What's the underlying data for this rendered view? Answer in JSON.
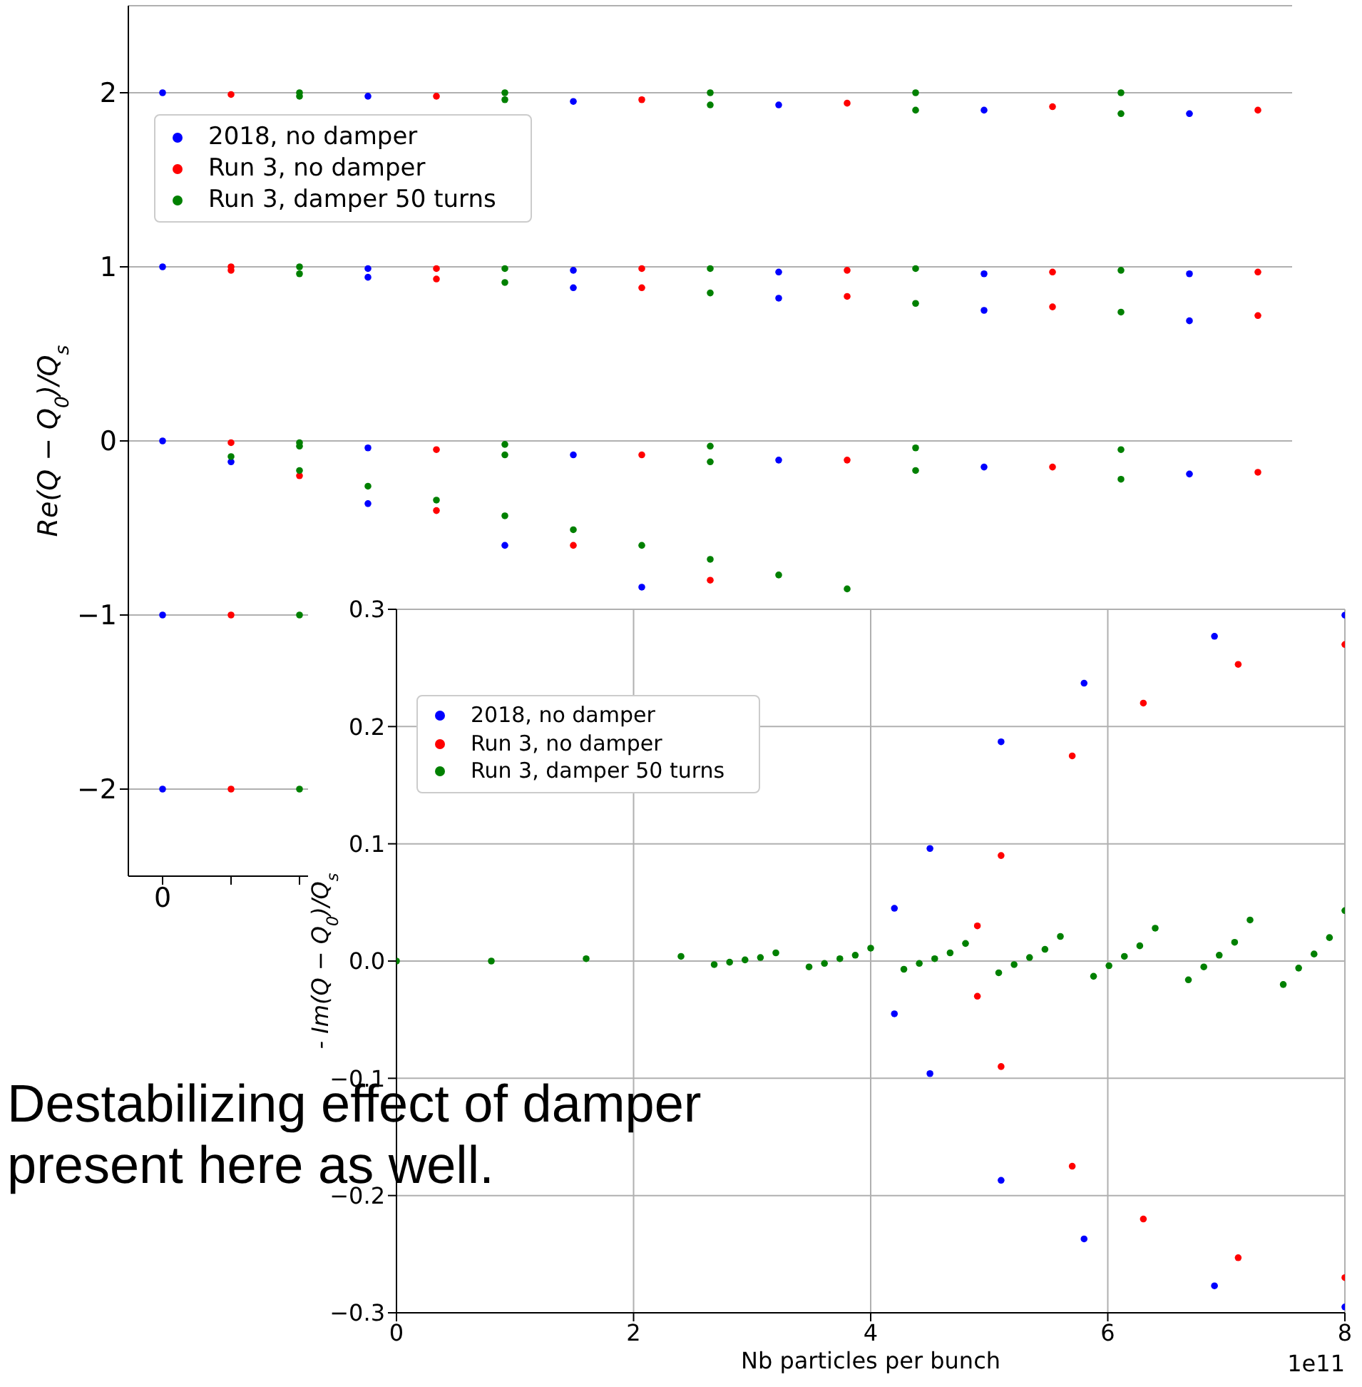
{
  "chart_data": [
    {
      "type": "scatter",
      "ylabel": "Re(Q − Q$_{0}$)/Q$_{s}$",
      "categories": [
        "0",
        null,
        null,
        null,
        null,
        null,
        null,
        null,
        null,
        null,
        null,
        null,
        null,
        null,
        null,
        null,
        null
      ],
      "ylim": [
        -2.5,
        2.5
      ],
      "yticks": [
        {
          "value": -2,
          "label": "−2"
        },
        {
          "value": -1,
          "label": "−1"
        },
        0,
        1,
        2
      ],
      "grid": "y",
      "legend": "top left",
      "marker": "circle",
      "series": [
        {
          "name": "2018, no damper",
          "color": "#0000ff",
          "values": [
            2,
            null,
            null,
            1.98,
            null,
            null,
            1.95,
            null,
            null,
            1.93,
            null,
            null,
            1.9,
            null,
            null,
            1.88,
            null
          ]
        },
        {
          "name": "Run 3, no damper",
          "color": "#ff0000",
          "values": [
            null,
            1.99,
            null,
            null,
            1.98,
            null,
            null,
            1.96,
            null,
            null,
            1.94,
            null,
            null,
            1.92,
            null,
            null,
            1.9
          ]
        },
        {
          "name": "Run 3, damper 50 turns",
          "color": "#008000",
          "values": [
            null,
            null,
            2,
            null,
            null,
            2,
            null,
            null,
            2,
            null,
            null,
            2,
            null,
            null,
            2,
            null,
            null
          ]
        },
        {
          "color": "#0000ff",
          "values": [
            1,
            null,
            null,
            0.94,
            null,
            null,
            0.88,
            null,
            null,
            0.82,
            null,
            null,
            0.75,
            null,
            null,
            0.69,
            null
          ]
        },
        {
          "color": "#0000ff",
          "values": [
            null,
            null,
            null,
            0.99,
            null,
            null,
            0.98,
            null,
            null,
            0.97,
            null,
            null,
            0.96,
            null,
            null,
            0.96,
            null
          ]
        },
        {
          "color": "#0000ff",
          "values": [
            0,
            null,
            null,
            -0.04,
            null,
            null,
            -0.08,
            null,
            null,
            -0.11,
            null,
            null,
            -0.15,
            null,
            null,
            -0.19,
            null
          ]
        },
        {
          "color": "#0000ff",
          "values": [
            null,
            -0.12,
            null,
            -0.36,
            null,
            -0.6,
            null,
            -0.84,
            null,
            null,
            null,
            null,
            null,
            null,
            null,
            null,
            null
          ]
        },
        {
          "color": "#0000ff",
          "values": [
            -1,
            null,
            null,
            null,
            null,
            null,
            null,
            null,
            null,
            null,
            null,
            null,
            null,
            null,
            null,
            null,
            null
          ]
        },
        {
          "color": "#0000ff",
          "values": [
            -2,
            null,
            null,
            null,
            null,
            null,
            null,
            null,
            null,
            null,
            null,
            null,
            null,
            null,
            null,
            null,
            null
          ]
        },
        {
          "color": "#ff0000",
          "values": [
            null,
            0.98,
            null,
            null,
            0.93,
            null,
            null,
            0.88,
            null,
            null,
            0.83,
            null,
            null,
            0.77,
            null,
            null,
            0.72
          ]
        },
        {
          "color": "#ff0000",
          "values": [
            null,
            1,
            null,
            null,
            0.99,
            null,
            null,
            0.99,
            null,
            null,
            0.98,
            null,
            null,
            0.97,
            null,
            null,
            0.97
          ]
        },
        {
          "color": "#ff0000",
          "values": [
            null,
            -0.01,
            null,
            null,
            -0.05,
            null,
            null,
            -0.08,
            null,
            null,
            -0.11,
            null,
            null,
            -0.15,
            null,
            null,
            -0.18
          ]
        },
        {
          "color": "#ff0000",
          "values": [
            null,
            null,
            -0.2,
            null,
            -0.4,
            null,
            -0.6,
            null,
            -0.8,
            null,
            null,
            null,
            null,
            null,
            null,
            null,
            null
          ]
        },
        {
          "color": "#ff0000",
          "values": [
            null,
            -1,
            null,
            null,
            null,
            null,
            null,
            null,
            null,
            null,
            null,
            null,
            null,
            null,
            null,
            null,
            null
          ]
        },
        {
          "color": "#ff0000",
          "values": [
            null,
            -2,
            null,
            null,
            null,
            null,
            null,
            null,
            null,
            null,
            null,
            null,
            null,
            null,
            null,
            null,
            null
          ]
        },
        {
          "color": "#008000",
          "values": [
            null,
            null,
            1.98,
            null,
            null,
            1.96,
            null,
            null,
            1.93,
            null,
            null,
            1.9,
            null,
            null,
            1.88,
            null,
            null
          ]
        },
        {
          "color": "#008000",
          "values": [
            null,
            null,
            1,
            null,
            null,
            0.99,
            null,
            null,
            0.99,
            null,
            null,
            0.99,
            null,
            null,
            0.98,
            null,
            null
          ]
        },
        {
          "color": "#008000",
          "values": [
            null,
            null,
            0.96,
            null,
            null,
            0.91,
            null,
            null,
            0.85,
            null,
            null,
            0.79,
            null,
            null,
            0.74,
            null,
            null
          ]
        },
        {
          "color": "#008000",
          "values": [
            null,
            null,
            -0.03,
            null,
            null,
            -0.08,
            null,
            null,
            -0.12,
            null,
            null,
            -0.17,
            null,
            null,
            -0.22,
            null,
            null
          ]
        },
        {
          "color": "#008000",
          "values": [
            null,
            null,
            -0.01,
            null,
            null,
            -0.02,
            null,
            null,
            -0.03,
            null,
            null,
            -0.04,
            null,
            null,
            -0.05,
            null,
            null
          ]
        },
        {
          "color": "#008000",
          "values": [
            null,
            -0.09,
            -0.17,
            -0.26,
            -0.34,
            -0.43,
            -0.51,
            -0.6,
            -0.68,
            -0.77,
            -0.85,
            null,
            null,
            null,
            null,
            null,
            null
          ]
        },
        {
          "color": "#008000",
          "values": [
            null,
            null,
            -1,
            null,
            null,
            null,
            null,
            null,
            null,
            null,
            null,
            null,
            null,
            null,
            null,
            null,
            null
          ]
        },
        {
          "color": "#008000",
          "values": [
            null,
            null,
            -2,
            null,
            null,
            null,
            null,
            null,
            null,
            null,
            null,
            null,
            null,
            null,
            null,
            null,
            null
          ]
        }
      ]
    },
    {
      "type": "scatter",
      "xlabel": "Nb particles per bunch",
      "ylabel": "- Im(Q − Q$_{0}$)/Q$_{s}$",
      "xlim": [
        0,
        8
      ],
      "xticks": [
        0,
        2,
        4,
        6,
        8
      ],
      "ylim": [
        -0.3,
        0.3
      ],
      "yticks": [
        {
          "value": -0.3,
          "label": "−0.3"
        },
        {
          "value": -0.2,
          "label": "−0.2"
        },
        {
          "value": -0.1,
          "label": "−0.1"
        },
        {
          "value": 0,
          "label": "0.0"
        },
        0.1,
        0.2,
        0.3
      ],
      "grid": true,
      "legend": "top left",
      "marker": "circle",
      "annotations": [
        "1e11",
        "Destabilizing effect of damper present here as well."
      ],
      "series": [
        {
          "name": "2018, no damper",
          "color": "#0000ff",
          "x": [
            4.2,
            4.5,
            5.1,
            5.8,
            6.9,
            8,
            4.2,
            4.5,
            5.1,
            5.8,
            6.9,
            8
          ],
          "values": [
            0.045,
            0.096,
            0.187,
            0.237,
            0.277,
            0.295,
            -0.045,
            -0.096,
            -0.187,
            -0.237,
            -0.277,
            -0.295
          ]
        },
        {
          "name": "Run 3, no damper",
          "color": "#ff0000",
          "x": [
            4.9,
            5.1,
            5.7,
            6.3,
            7.1,
            8,
            4.9,
            5.1,
            5.7,
            6.3,
            7.1,
            8
          ],
          "values": [
            0.03,
            0.09,
            0.175,
            0.22,
            0.253,
            0.27,
            -0.03,
            -0.09,
            -0.175,
            -0.22,
            -0.253,
            -0.27
          ]
        },
        {
          "name": "Run 3, damper 50 turns",
          "color": "#008000",
          "x": [
            0,
            0.8,
            1.6,
            2.4,
            3.2,
            4,
            4.8,
            5.6,
            6.4,
            7.2,
            8,
            7.87,
            7.07,
            6.27,
            5.47,
            4.67,
            3.87,
            3.07,
            7.74,
            6.94,
            6.14,
            5.34,
            4.54,
            3.74,
            2.94,
            7.61,
            6.81,
            6.01,
            5.21,
            4.41,
            3.61,
            2.81,
            7.48,
            6.68,
            5.88,
            5.08,
            4.28,
            3.48,
            2.68
          ],
          "values": [
            0,
            0,
            0.002,
            0.004,
            0.007,
            0.011,
            0.015,
            0.021,
            0.028,
            0.035,
            0.043,
            0.02,
            0.016,
            0.013,
            0.01,
            0.007,
            0.005,
            0.003,
            0.006,
            0.005,
            0.004,
            0.003,
            0.002,
            0.002,
            0.001,
            -0.006,
            -0.005,
            -0.004,
            -0.003,
            -0.002,
            -0.002,
            -0.001,
            -0.02,
            -0.016,
            -0.013,
            -0.01,
            -0.007,
            -0.005,
            -0.003
          ]
        }
      ]
    }
  ]
}
